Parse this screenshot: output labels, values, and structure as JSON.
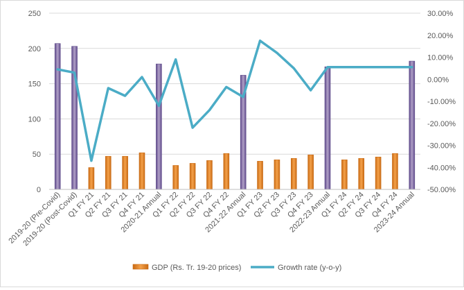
{
  "chart_data": {
    "type": "bar",
    "categories": [
      "2019-20 (Pre-Covid)",
      "2019-20 (Post-Covid)",
      "Q1 FY 21",
      "Q2 FY 21",
      "Q3 FY 21",
      "Q4 FY 21",
      "2020-21 Annual",
      "Q1 FY 22",
      "Q2 FY 22",
      "Q3 FY 22",
      "Q4 FY 22",
      "2021-22 Annual",
      "Q1 FY 23",
      "Q2 FY 23",
      "Q3 FY 23",
      "Q4 FY 23",
      "2022-23 Annual",
      "Q1 FY 24",
      "Q2 FY 24",
      "Q3 FY 24",
      "Q4 FY 24",
      "2023-24 Annual"
    ],
    "series": [
      {
        "name": "GDP (Rs. Tr. 19-20 prices)",
        "type": "bar",
        "axis": "left",
        "values": [
          207,
          203,
          31,
          47,
          47,
          52,
          178,
          34,
          37,
          41,
          51,
          162,
          40,
          42,
          44,
          49,
          174,
          42,
          44,
          46,
          51,
          182
        ]
      },
      {
        "name": "Growth rate (y-o-y)",
        "type": "line",
        "axis": "right",
        "values": [
          4.5,
          3.0,
          -37.0,
          -4.0,
          -7.5,
          1.0,
          -12.0,
          9.0,
          -22.0,
          -14.0,
          -3.5,
          -8.0,
          17.5,
          12.0,
          5.0,
          -5.0,
          5.5,
          5.5,
          5.5,
          5.5,
          5.5,
          5.5
        ]
      }
    ],
    "annual_categories": [
      "2019-20 (Pre-Covid)",
      "2019-20 (Post-Covid)",
      "2020-21 Annual",
      "2021-22 Annual",
      "2022-23 Annual",
      "2023-24 Annual"
    ],
    "left_axis": {
      "ylim": [
        0,
        250
      ],
      "ticks": [
        0,
        50,
        100,
        150,
        200,
        250
      ]
    },
    "right_axis": {
      "ylim": [
        -50,
        30
      ],
      "ticks": [
        "-50.00%",
        "-40.00%",
        "-30.00%",
        "-20.00%",
        "-10.00%",
        "0.00%",
        "10.00%",
        "20.00%",
        "30.00%"
      ]
    },
    "title": "",
    "xlabel": "",
    "ylabel": "",
    "grid": "horizontal",
    "legend_position": "bottom",
    "colors": {
      "quarter_bar": "#f4a14a",
      "quarter_bar_dark": "#c96b15",
      "annual_bar": "#b1a0c7",
      "annual_bar_dark": "#5f4b8b",
      "line": "#4bacc6",
      "grid": "#d9d9d9"
    }
  }
}
